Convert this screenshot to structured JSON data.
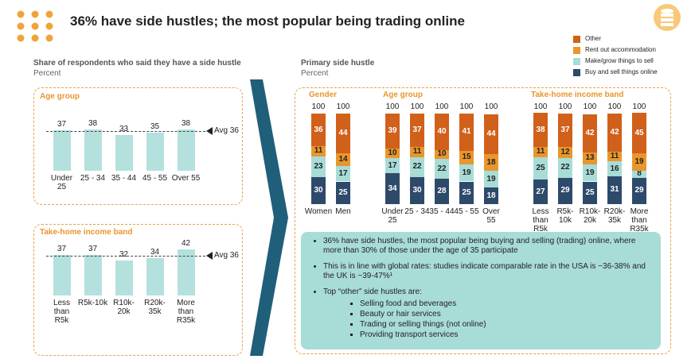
{
  "title": "36% have side hustles; the most popular being trading online",
  "left_panel": {
    "title": "Share of respondents who said they have a side hustle",
    "unit": "Percent"
  },
  "chart_data": [
    {
      "type": "bar",
      "title": "Age group",
      "categories": [
        "Under 25",
        "25 - 34",
        "35 - 44",
        "45 - 55",
        "Over 55"
      ],
      "values": [
        37,
        38,
        33,
        35,
        38
      ],
      "color": "#b4e1dd",
      "ylim": [
        0,
        45
      ],
      "reference_line": {
        "value": 36,
        "label": "Avg 36"
      }
    },
    {
      "type": "bar",
      "title": "Take-home income band",
      "categories": [
        "Less than R5k",
        "R5k-10k",
        "R10k-20k",
        "R20k-35k",
        "More than R35k"
      ],
      "values": [
        37,
        37,
        32,
        34,
        42
      ],
      "color": "#b4e1dd",
      "ylim": [
        0,
        45
      ],
      "reference_line": {
        "value": 36,
        "label": "Avg 36"
      }
    },
    {
      "type": "stacked-bar",
      "title": "Primary side hustle",
      "subtitle": "Percent",
      "groups": [
        "Gender",
        "Age group",
        "Take-home income band"
      ],
      "categories": [
        "Women",
        "Men",
        null,
        "Under 25",
        "25 - 34",
        "35 - 44",
        "45 - 55",
        "Over 55",
        null,
        "Less than R5k",
        "R5k-10k",
        "R10k-20k",
        "R20k-35k",
        "More than R35k"
      ],
      "totals": [
        100,
        100,
        null,
        100,
        100,
        100,
        100,
        100,
        null,
        100,
        100,
        100,
        100,
        100
      ],
      "ylim": [
        0,
        100
      ],
      "series": [
        {
          "name": "Buy and sell things online",
          "color": "#2e4a6b",
          "values": [
            30,
            25,
            null,
            34,
            30,
            28,
            25,
            18,
            null,
            27,
            29,
            25,
            31,
            29
          ]
        },
        {
          "name": "Make/grow things to sell",
          "color": "#a8dcd7",
          "values": [
            23,
            17,
            null,
            17,
            22,
            22,
            19,
            19,
            null,
            25,
            22,
            19,
            16,
            8
          ]
        },
        {
          "name": "Rent out accommodation",
          "color": "#e9962c",
          "values": [
            11,
            14,
            null,
            10,
            11,
            10,
            15,
            18,
            null,
            11,
            12,
            13,
            11,
            19
          ]
        },
        {
          "name": "Other",
          "color": "#d1601b",
          "values": [
            36,
            44,
            null,
            39,
            37,
            40,
            41,
            44,
            null,
            38,
            37,
            42,
            42,
            45
          ]
        }
      ]
    }
  ],
  "notes": {
    "bullets": [
      "36% have side hustles, the most popular being buying and selling (trading) online, where more than 30% of those under the age of 35 participate",
      "This is in line with global rates: studies indicate comparable rate in the USA is ~36-38% and the UK is ~39-47%¹",
      "Top “other” side hustles are:"
    ],
    "sub_bullets": [
      "Selling food and beverages",
      "Beauty or hair services",
      "Trading or selling things (not online)",
      "Providing transport services"
    ]
  }
}
